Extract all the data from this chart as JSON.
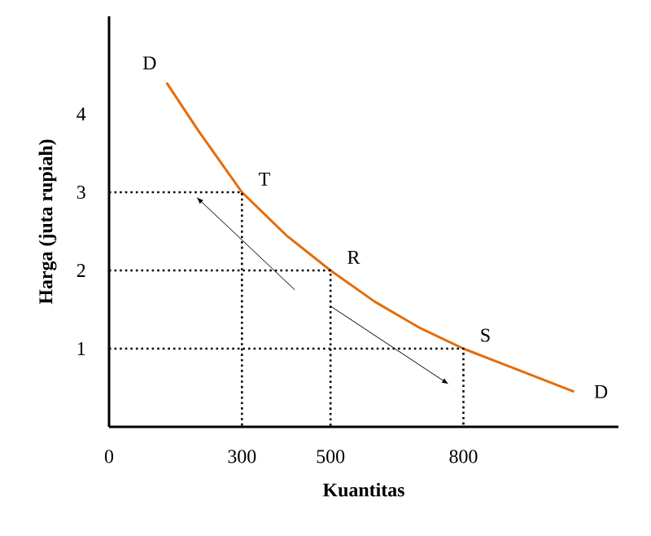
{
  "chart_data": {
    "type": "line",
    "xlabel": "Kuantitas",
    "ylabel": "Harga (juta rupiah)",
    "series": [
      {
        "color": "#e46c0a",
        "x": [
          130,
          200,
          300,
          400,
          500,
          600,
          700,
          800,
          900,
          1050
        ],
        "values": [
          4.4,
          3.8,
          3,
          2.45,
          2,
          1.6,
          1.27,
          1,
          0.78,
          0.45
        ]
      },
      {
        "color": "#000000",
        "line_style": "dotted",
        "x": [
          0,
          300,
          300
        ],
        "values": [
          3,
          3,
          0
        ]
      },
      {
        "color": "#000000",
        "line_style": "dotted",
        "x": [
          0,
          500,
          500
        ],
        "values": [
          2,
          2,
          0
        ]
      },
      {
        "color": "#000000",
        "line_style": "dotted",
        "x": [
          0,
          800,
          800
        ],
        "values": [
          1,
          1,
          0
        ]
      }
    ],
    "xlim": [
      0,
      1150
    ],
    "ylim": [
      0,
      5.25
    ],
    "xticks": [
      0,
      300,
      500,
      800
    ],
    "yticks": [
      1,
      2,
      3,
      4
    ],
    "annotations": [
      {
        "text": "D",
        "x": 130,
        "y": 4.4
      },
      {
        "text": "T",
        "x": 300,
        "y": 3
      },
      {
        "text": "R",
        "x": 500,
        "y": 2
      },
      {
        "text": "S",
        "x": 800,
        "y": 1
      },
      {
        "text": "D",
        "x": 1050,
        "y": 0.45
      }
    ]
  }
}
